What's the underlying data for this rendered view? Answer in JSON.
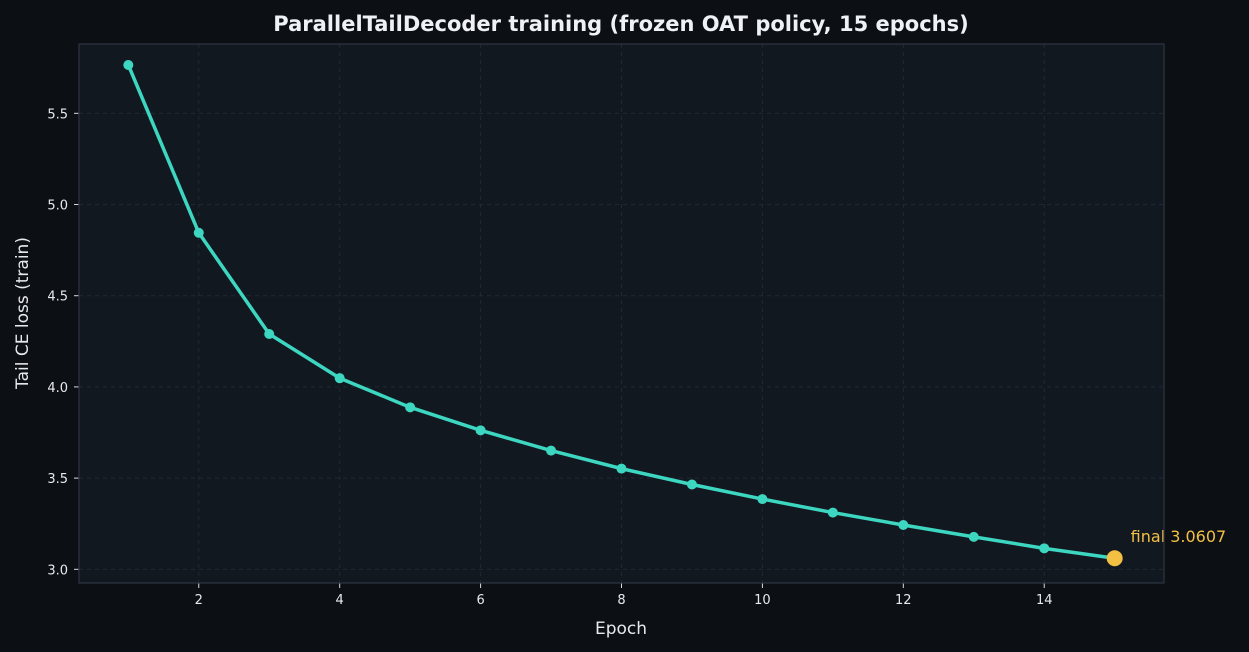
{
  "chart_data": {
    "type": "line",
    "title": "ParallelTailDecoder training (frozen OAT policy, 15 epochs)",
    "xlabel": "Epoch",
    "ylabel": "Tail CE loss (train)",
    "xlim": [
      0.3,
      15.7
    ],
    "ylim": [
      2.925,
      5.88
    ],
    "xticks": [
      2,
      4,
      6,
      8,
      10,
      12,
      14
    ],
    "yticks": [
      3.0,
      3.5,
      4.0,
      4.5,
      5.0,
      5.5
    ],
    "grid": true,
    "x": [
      1,
      2,
      3,
      4,
      5,
      6,
      7,
      8,
      9,
      10,
      11,
      12,
      13,
      14,
      15
    ],
    "series": [
      {
        "values": [
          5.765,
          4.845,
          4.29,
          4.048,
          3.888,
          3.762,
          3.651,
          3.552,
          3.465,
          3.385,
          3.311,
          3.243,
          3.178,
          3.115,
          3.0607
        ]
      }
    ],
    "annotations": [
      {
        "text": "final 3.0607",
        "x": 15,
        "y": 3.0607
      }
    ],
    "colors": {
      "background": "#0c0f14",
      "plot_background": "#121820",
      "line": "#3dd6c0",
      "final_marker": "#f3c043",
      "annotation": "#f3c043",
      "frame": "#2d3543"
    }
  }
}
